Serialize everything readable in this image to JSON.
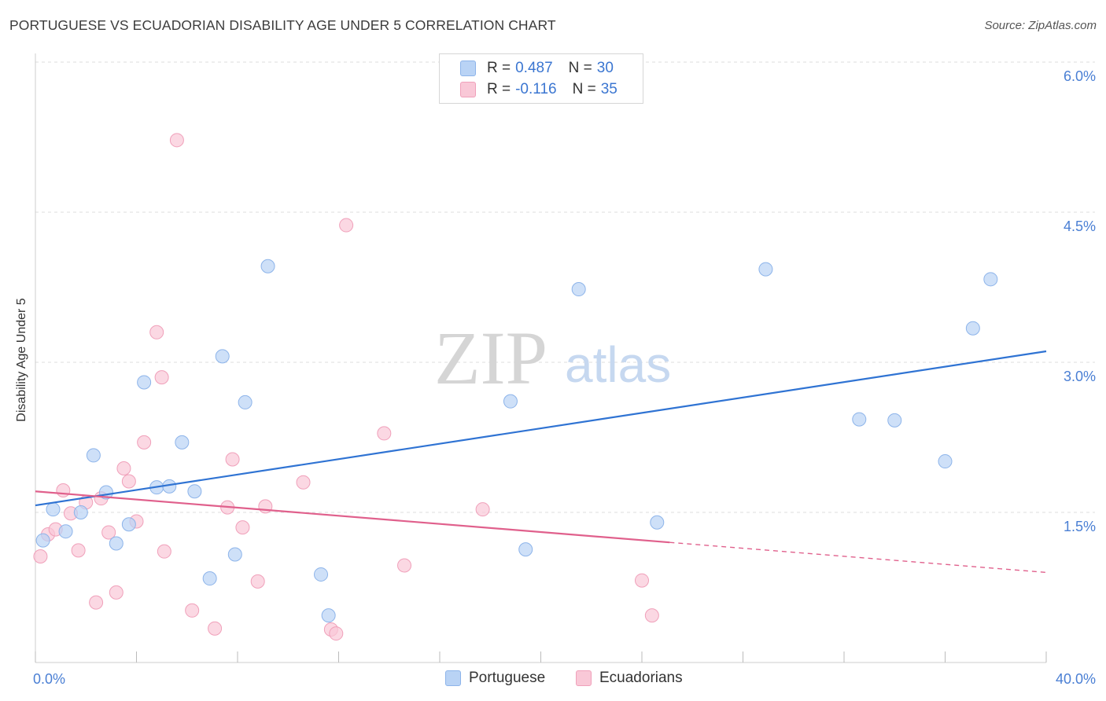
{
  "title": "PORTUGUESE VS ECUADORIAN DISABILITY AGE UNDER 5 CORRELATION CHART",
  "source": "Source: ZipAtlas.com",
  "watermark": {
    "zip": "ZIP",
    "atlas": "atlas"
  },
  "legend": {
    "blue": {
      "r_label": "R =",
      "r_value": "0.487",
      "n_label": "N =",
      "n_value": "30"
    },
    "pink": {
      "r_label": "R =",
      "r_value": "-0.116",
      "n_label": "N =",
      "n_value": "35"
    }
  },
  "bottom_legend": {
    "portuguese": "Portuguese",
    "ecuadorians": "Ecuadorians"
  },
  "colors": {
    "blue_fill": "#b9d3f5",
    "blue_stroke": "#8db4ea",
    "blue_line": "#2f73d3",
    "pink_fill": "#f9c8d7",
    "pink_stroke": "#f0a0ba",
    "pink_line": "#e0608c",
    "grid": "#dddddd",
    "tick_text": "#4a7fd4"
  },
  "chart_data": {
    "type": "scatter",
    "title": "PORTUGUESE VS ECUADORIAN DISABILITY AGE UNDER 5 CORRELATION CHART",
    "xlabel": "",
    "ylabel": "Disability Age Under 5",
    "xlim": [
      0,
      40
    ],
    "ylim": [
      0,
      6.0
    ],
    "x_tick_labels": [
      "0.0%",
      "40.0%"
    ],
    "y_ticks": [
      1.5,
      3.0,
      4.5,
      6.0
    ],
    "y_tick_labels": [
      "1.5%",
      "3.0%",
      "4.5%",
      "6.0%"
    ],
    "grid": true,
    "series": [
      {
        "name": "Portuguese",
        "points": [
          [
            0.3,
            1.22
          ],
          [
            0.7,
            1.53
          ],
          [
            1.2,
            1.31
          ],
          [
            1.8,
            1.5
          ],
          [
            2.3,
            2.07
          ],
          [
            2.8,
            1.7
          ],
          [
            3.2,
            1.19
          ],
          [
            3.7,
            1.38
          ],
          [
            4.3,
            2.8
          ],
          [
            4.8,
            1.75
          ],
          [
            5.3,
            1.76
          ],
          [
            5.8,
            2.2
          ],
          [
            6.3,
            1.71
          ],
          [
            6.9,
            0.84
          ],
          [
            7.4,
            3.06
          ],
          [
            7.9,
            1.08
          ],
          [
            8.3,
            2.6
          ],
          [
            9.2,
            3.96
          ],
          [
            11.3,
            0.88
          ],
          [
            11.6,
            0.47
          ],
          [
            18.8,
            2.61
          ],
          [
            19.4,
            1.13
          ],
          [
            21.5,
            3.73
          ],
          [
            24.6,
            1.4
          ],
          [
            28.9,
            3.93
          ],
          [
            32.6,
            2.43
          ],
          [
            34.0,
            2.42
          ],
          [
            36.0,
            2.01
          ],
          [
            37.1,
            3.34
          ],
          [
            37.8,
            3.83
          ]
        ],
        "trend": {
          "from": [
            0,
            1.57
          ],
          "to": [
            40,
            3.11
          ]
        }
      },
      {
        "name": "Ecuadorians",
        "points": [
          [
            0.2,
            1.06
          ],
          [
            0.5,
            1.28
          ],
          [
            0.8,
            1.33
          ],
          [
            1.1,
            1.72
          ],
          [
            1.4,
            1.49
          ],
          [
            1.7,
            1.12
          ],
          [
            2.0,
            1.6
          ],
          [
            2.4,
            0.6
          ],
          [
            2.6,
            1.64
          ],
          [
            2.9,
            1.3
          ],
          [
            3.2,
            0.7
          ],
          [
            3.5,
            1.94
          ],
          [
            3.7,
            1.81
          ],
          [
            4.0,
            1.41
          ],
          [
            4.3,
            2.2
          ],
          [
            4.8,
            3.3
          ],
          [
            5.0,
            2.85
          ],
          [
            5.1,
            1.11
          ],
          [
            5.6,
            5.22
          ],
          [
            6.2,
            0.52
          ],
          [
            7.1,
            0.34
          ],
          [
            7.6,
            1.55
          ],
          [
            7.8,
            2.03
          ],
          [
            8.2,
            1.35
          ],
          [
            8.8,
            0.81
          ],
          [
            9.1,
            1.56
          ],
          [
            10.6,
            1.8
          ],
          [
            11.7,
            0.33
          ],
          [
            11.9,
            0.29
          ],
          [
            12.3,
            4.37
          ],
          [
            13.8,
            2.29
          ],
          [
            14.6,
            0.97
          ],
          [
            17.7,
            1.53
          ],
          [
            24.0,
            0.82
          ],
          [
            24.4,
            0.47
          ]
        ],
        "trend": {
          "from": [
            0,
            1.71
          ],
          "to": [
            25.1,
            1.2
          ]
        },
        "trend_extension": {
          "from": [
            25.1,
            1.2
          ],
          "to": [
            40,
            0.9
          ]
        }
      }
    ]
  }
}
